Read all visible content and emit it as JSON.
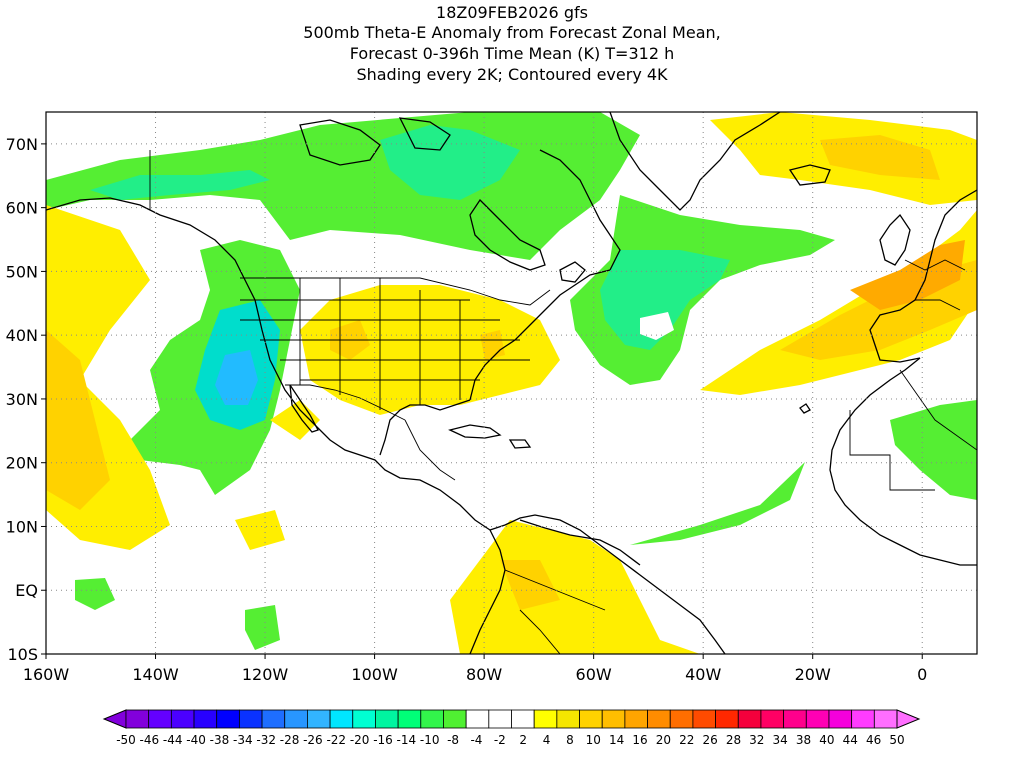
{
  "title": {
    "line1": "18Z09FEB2026 gfs",
    "line2": "500mb Theta-E Anomaly from Forecast Zonal Mean,",
    "line3": "Forecast 0-396h Time Mean (K) T=312 h",
    "line4": "Shading every 2K; Contoured every 4K"
  },
  "map": {
    "lat_labels": [
      "70N",
      "60N",
      "50N",
      "40N",
      "30N",
      "20N",
      "10N",
      "EQ",
      "10S"
    ],
    "lon_labels": [
      "160W",
      "140W",
      "120W",
      "100W",
      "80W",
      "60W",
      "40W",
      "20W",
      "0"
    ],
    "lat_values": [
      70,
      60,
      50,
      40,
      30,
      20,
      10,
      0,
      -10
    ],
    "lon_values": [
      -160,
      -140,
      -120,
      -100,
      -80,
      -60,
      -40,
      -20,
      0
    ],
    "extent": {
      "lon_min": -160,
      "lon_max": 10,
      "lat_min": -10,
      "lat_max": 75
    }
  },
  "colorbar": {
    "labels": [
      "-50",
      "-46",
      "-44",
      "-40",
      "-38",
      "-34",
      "-32",
      "-28",
      "-26",
      "-22",
      "-20",
      "-16",
      "-14",
      "-10",
      "-8",
      "-4",
      "-2",
      "2",
      "4",
      "8",
      "10",
      "14",
      "16",
      "20",
      "22",
      "26",
      "28",
      "32",
      "34",
      "38",
      "40",
      "44",
      "46",
      "50"
    ],
    "colors": [
      "#8200dc",
      "#6400ff",
      "#4b00ff",
      "#2800ff",
      "#0000ff",
      "#0a32ff",
      "#1e6eff",
      "#2896ff",
      "#32b4ff",
      "#00e6ff",
      "#00ffd2",
      "#00f5a0",
      "#00ff78",
      "#32f54b",
      "#50f032",
      "#ffffff",
      "#ffffff",
      "#ffffff",
      "#ffff00",
      "#f5e600",
      "#ffd200",
      "#ffbe00",
      "#ffa500",
      "#ff8c00",
      "#ff6e00",
      "#ff4b00",
      "#ff2800",
      "#f5003c",
      "#ff0064",
      "#ff008c",
      "#ff00b4",
      "#f500dc",
      "#ff3cff",
      "#ff6eff"
    ]
  },
  "colors": {
    "green": "#55ee33",
    "green_light": "#22ee88",
    "teal": "#00ddcc",
    "cyan": "#22bbff",
    "yellow": "#ffee00",
    "gold": "#ffd200",
    "orange": "#ffaa00"
  }
}
